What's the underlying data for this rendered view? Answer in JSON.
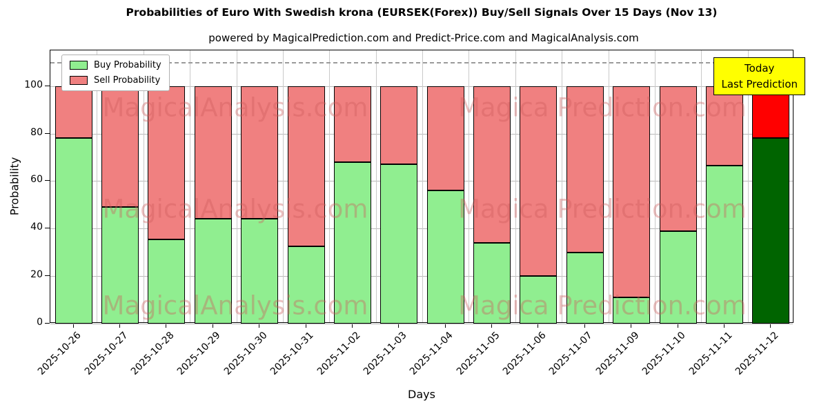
{
  "chart_data": {
    "type": "bar",
    "stacked": true,
    "title": "Probabilities of Euro With Swedish krona (EURSEK(Forex)) Buy/Sell Signals Over 15 Days (Nov 13)",
    "subtitle": "powered by MagicalPrediction.com and Predict-Price.com and MagicalAnalysis.com",
    "xlabel": "Days",
    "ylabel": "Probability",
    "ylim": [
      0,
      115
    ],
    "yticks": [
      0,
      20,
      40,
      60,
      80,
      100
    ],
    "grid": true,
    "legend_position": "upper left",
    "categories": [
      "2025-10-26",
      "2025-10-27",
      "2025-10-28",
      "2025-10-29",
      "2025-10-30",
      "2025-10-31",
      "2025-11-02",
      "2025-11-03",
      "2025-11-04",
      "2025-11-05",
      "2025-11-06",
      "2025-11-07",
      "2025-11-09",
      "2025-11-10",
      "2025-11-11",
      "2025-11-12"
    ],
    "series": [
      {
        "name": "Buy Probability",
        "color": "#90EE90",
        "values": [
          78,
          49,
          35.5,
          44,
          44,
          32.5,
          68,
          67,
          56,
          34,
          20,
          30,
          11,
          39,
          66.5,
          78
        ]
      },
      {
        "name": "Sell Probability",
        "color": "#F08080",
        "values": [
          22,
          51,
          64.5,
          56,
          56,
          67.5,
          32,
          33,
          44,
          66,
          80,
          70,
          89,
          61,
          33.5,
          22
        ]
      }
    ],
    "today_bar": {
      "index": 15,
      "buy_color": "#006400",
      "sell_color": "#FF0000"
    },
    "dashed_line_y": 110,
    "annotation": {
      "lines": [
        "Today",
        "Last Prediction"
      ],
      "bg": "#FFFF00"
    },
    "watermarks": [
      "MagicalAnalysis.com",
      "Magica Prediction.com"
    ]
  }
}
